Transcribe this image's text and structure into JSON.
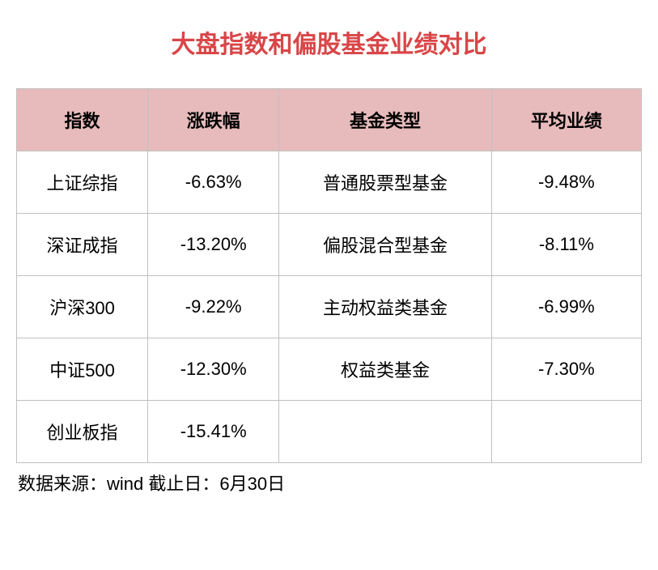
{
  "title": "大盘指数和偏股基金业绩对比",
  "headers": {
    "col1": "指数",
    "col2": "涨跌幅",
    "col3": "基金类型",
    "col4": "平均业绩"
  },
  "rows": [
    {
      "index": "上证综指",
      "change": "-6.63%",
      "fundType": "普通股票型基金",
      "perf": "-9.48%"
    },
    {
      "index": "深证成指",
      "change": "-13.20%",
      "fundType": "偏股混合型基金",
      "perf": "-8.11%"
    },
    {
      "index": "沪深300",
      "change": "-9.22%",
      "fundType": "主动权益类基金",
      "perf": "-6.99%"
    },
    {
      "index": "中证500",
      "change": "-12.30%",
      "fundType": "权益类基金",
      "perf": "-7.30%"
    },
    {
      "index": "创业板指",
      "change": "-15.41%",
      "fundType": "",
      "perf": ""
    }
  ],
  "source": "数据来源：wind  截止日：6月30日",
  "styling": {
    "title_color": "#d94648",
    "title_fontsize": 30,
    "header_bg": "#e7bbbb",
    "border_color": "#c0c0c0",
    "cell_fontsize": 22,
    "text_color": "#000000",
    "background": "#ffffff",
    "column_widths_pct": [
      21,
      21,
      34,
      24
    ]
  }
}
